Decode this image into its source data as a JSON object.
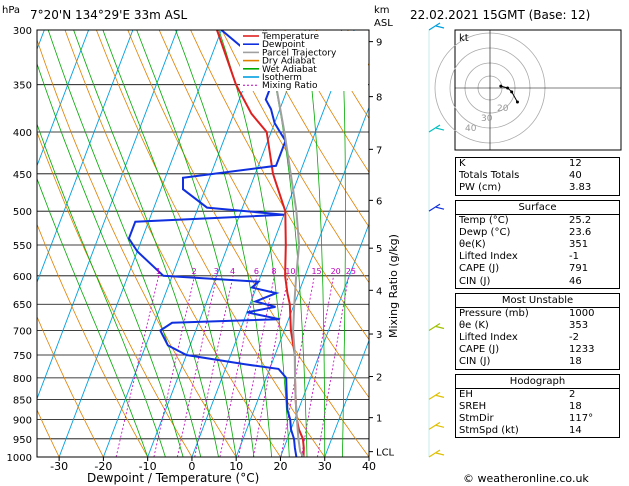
{
  "header": {
    "location": "7°20'N 134°29'E 33m ASL",
    "datetime": "22.02.2021 15GMT (Base: 12)",
    "left_unit": "hPa",
    "right_unit_km": "km",
    "right_unit_asl": "ASL"
  },
  "chart_data": {
    "type": "line",
    "title": "",
    "xlabel": "Dewpoint / Temperature (°C)",
    "ylabel": "hPa",
    "y2label": "Mixing Ratio (g/kg)",
    "xlim": [
      -35,
      40
    ],
    "ylim": [
      1000,
      300
    ],
    "x_ticks": [
      "-30",
      "-20",
      "-10",
      "0",
      "10",
      "20",
      "30",
      "40"
    ],
    "pressure_ticks": [
      "300",
      "350",
      "400",
      "450",
      "500",
      "550",
      "600",
      "650",
      "700",
      "750",
      "800",
      "850",
      "900",
      "950",
      "1000"
    ],
    "km_ticks": [
      {
        "label": "9",
        "p": 310
      },
      {
        "label": "8",
        "p": 362
      },
      {
        "label": "7",
        "p": 420
      },
      {
        "label": "6",
        "p": 485
      },
      {
        "label": "5",
        "p": 555
      },
      {
        "label": "4",
        "p": 625
      },
      {
        "label": "3",
        "p": 707
      },
      {
        "label": "2",
        "p": 797
      },
      {
        "label": "1",
        "p": 895
      },
      {
        "label": "LCL",
        "p": 985
      }
    ],
    "mixing_ratio_labels": [
      "1",
      "2",
      "3",
      "4",
      "6",
      "8",
      "10",
      "15",
      "20",
      "25"
    ],
    "legend": {
      "position": "top-left",
      "items": [
        {
          "name": "Temperature",
          "color": "#e02020"
        },
        {
          "name": "Dewpoint",
          "color": "#1030e0"
        },
        {
          "name": "Parcel Trajectory",
          "color": "#a0a0a0"
        },
        {
          "name": "Dry Adiabat",
          "color": "#e08000"
        },
        {
          "name": "Wet Adiabat",
          "color": "#00aa00"
        },
        {
          "name": "Isotherm",
          "color": "#00a0e0"
        },
        {
          "name": "Mixing Ratio",
          "color": "#c000c0"
        }
      ]
    },
    "series": [
      {
        "name": "Temperature",
        "color": "#e02020",
        "points": [
          [
            25.2,
            1000
          ],
          [
            24.5,
            975
          ],
          [
            23.5,
            950
          ],
          [
            21.8,
            925
          ],
          [
            20.5,
            900
          ],
          [
            19.5,
            875
          ],
          [
            18.5,
            850
          ],
          [
            17.5,
            825
          ],
          [
            16.5,
            800
          ],
          [
            14.5,
            750
          ],
          [
            11.5,
            700
          ],
          [
            9.0,
            650
          ],
          [
            7.5,
            630
          ],
          [
            5.5,
            600
          ],
          [
            3.0,
            550
          ],
          [
            0.0,
            500
          ],
          [
            -6.0,
            450
          ],
          [
            -11.0,
            400
          ],
          [
            -16.0,
            380
          ],
          [
            -22.0,
            350
          ],
          [
            -31.0,
            300
          ]
        ]
      },
      {
        "name": "Dewpoint",
        "color": "#1030e0",
        "points": [
          [
            23.6,
            1000
          ],
          [
            22.5,
            975
          ],
          [
            21.5,
            950
          ],
          [
            20.0,
            925
          ],
          [
            19.0,
            900
          ],
          [
            17.5,
            875
          ],
          [
            16.5,
            850
          ],
          [
            15.5,
            825
          ],
          [
            14.5,
            800
          ],
          [
            12.0,
            780
          ],
          [
            4.0,
            770
          ],
          [
            -10.0,
            750
          ],
          [
            -15.0,
            730
          ],
          [
            -18.0,
            700
          ],
          [
            -16.0,
            685
          ],
          [
            8.0,
            678
          ],
          [
            0.0,
            665
          ],
          [
            6.0,
            655
          ],
          [
            1.0,
            645
          ],
          [
            5.0,
            630
          ],
          [
            -1.0,
            620
          ],
          [
            0.0,
            610
          ],
          [
            -22.0,
            600
          ],
          [
            -30.0,
            560
          ],
          [
            -33.0,
            540
          ],
          [
            -33.0,
            515
          ],
          [
            0.0,
            505
          ],
          [
            -18.0,
            495
          ],
          [
            -25.0,
            470
          ],
          [
            -26.0,
            455
          ],
          [
            -6.0,
            440
          ],
          [
            -6.0,
            430
          ],
          [
            -6.0,
            410
          ],
          [
            -8.0,
            400
          ],
          [
            -10.0,
            390
          ],
          [
            -12.0,
            375
          ],
          [
            -14.0,
            365
          ],
          [
            -14.0,
            350
          ],
          [
            -18.0,
            330
          ],
          [
            -30.0,
            300
          ]
        ]
      },
      {
        "name": "Parcel Trajectory",
        "color": "#a0a0a0",
        "points": [
          [
            25.2,
            1000
          ],
          [
            24.0,
            985
          ],
          [
            22.5,
            950
          ],
          [
            20.5,
            900
          ],
          [
            18.5,
            850
          ],
          [
            16.5,
            800
          ],
          [
            14.5,
            750
          ],
          [
            12.0,
            700
          ],
          [
            10.0,
            650
          ],
          [
            8.0,
            600
          ],
          [
            6.0,
            550
          ],
          [
            2.5,
            500
          ],
          [
            -2.0,
            450
          ],
          [
            -7.0,
            400
          ],
          [
            -13.0,
            350
          ],
          [
            -20.0,
            300
          ]
        ]
      }
    ]
  },
  "hodograph": {
    "label": "kt",
    "ring_labels": [
      "40",
      "30",
      "20"
    ],
    "winds": [
      [
        117,
        14
      ],
      [
        100,
        10
      ],
      [
        90,
        8
      ],
      [
        80,
        5
      ]
    ]
  },
  "wind_barbs": [
    {
      "p": 300,
      "color": "#00a0e0"
    },
    {
      "p": 400,
      "color": "#00c0c0"
    },
    {
      "p": 500,
      "color": "#1030e0"
    },
    {
      "p": 700,
      "color": "#a0c000"
    },
    {
      "p": 850,
      "color": "#e0c000"
    },
    {
      "p": 925,
      "color": "#e0c000"
    },
    {
      "p": 1000,
      "color": "#e0c000"
    }
  ],
  "indices": {
    "top": [
      {
        "label": "K",
        "value": "12"
      },
      {
        "label": "Totals Totals",
        "value": "40"
      },
      {
        "label": "PW (cm)",
        "value": "3.83"
      }
    ],
    "surface": {
      "title": "Surface",
      "rows": [
        {
          "label": "Temp (°C)",
          "value": "25.2"
        },
        {
          "label": "Dewp (°C)",
          "value": "23.6"
        },
        {
          "label": "θe(K)",
          "value": "351"
        },
        {
          "label": "Lifted Index",
          "value": "-1"
        },
        {
          "label": "CAPE (J)",
          "value": "791"
        },
        {
          "label": "CIN (J)",
          "value": "46"
        }
      ]
    },
    "most_unstable": {
      "title": "Most Unstable",
      "rows": [
        {
          "label": "Pressure (mb)",
          "value": "1000"
        },
        {
          "label": "θe (K)",
          "value": "353"
        },
        {
          "label": "Lifted Index",
          "value": "-2"
        },
        {
          "label": "CAPE (J)",
          "value": "1233"
        },
        {
          "label": "CIN (J)",
          "value": "18"
        }
      ]
    },
    "hodograph_box": {
      "title": "Hodograph",
      "rows": [
        {
          "label": "EH",
          "value": "2"
        },
        {
          "label": "SREH",
          "value": "18"
        },
        {
          "label": "StmDir",
          "value": "117°"
        },
        {
          "label": "StmSpd (kt)",
          "value": "14"
        }
      ]
    }
  },
  "footer": {
    "copyright": "© weatheronline.co.uk"
  }
}
